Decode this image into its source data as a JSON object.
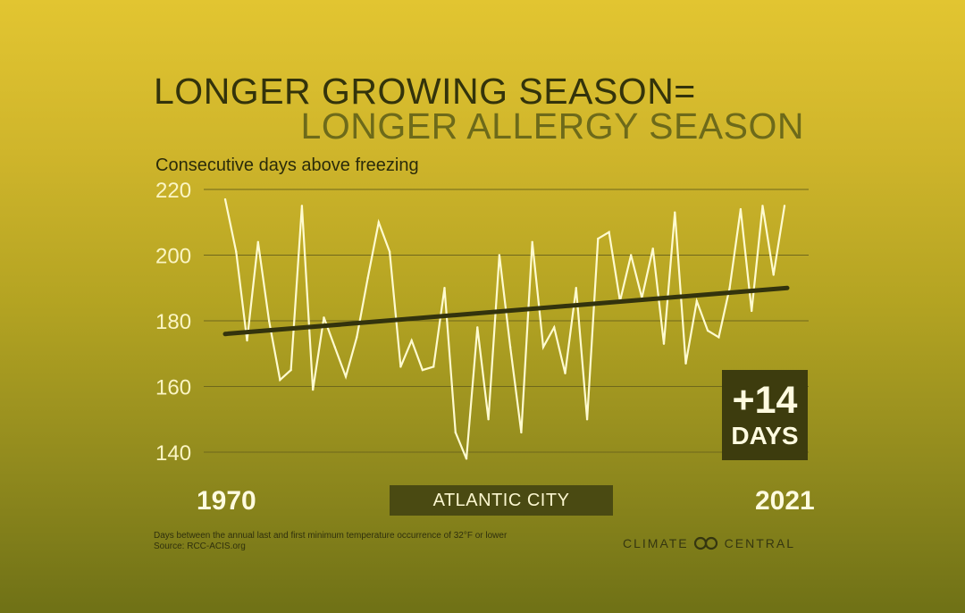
{
  "title_line1": "LONGER GROWING SEASON=",
  "title_line2": "LONGER ALLERGY SEASON",
  "colors": {
    "series_line": "#fffbd0",
    "trend_line": "#33330d",
    "grid": "#6f681c",
    "badge_bg": "#3d3c0e"
  },
  "chart_data": {
    "type": "line",
    "ylabel": "Consecutive days above freezing",
    "ylim": [
      130,
      225
    ],
    "yticks": [
      140,
      160,
      180,
      200,
      220
    ],
    "xlim": [
      1970,
      2021
    ],
    "x_start_label": "1970",
    "x_end_label": "2021",
    "grid": "horizontal",
    "series": [
      {
        "x": [
          1970,
          1971,
          1972,
          1973,
          1974,
          1975,
          1976,
          1977,
          1978,
          1979,
          1980,
          1981,
          1982,
          1983,
          1984,
          1985,
          1986,
          1987,
          1988,
          1989,
          1990,
          1991,
          1992,
          1993,
          1994,
          1995,
          1996,
          1997,
          1998,
          1999,
          2000,
          2001,
          2002,
          2003,
          2004,
          2005,
          2006,
          2007,
          2008,
          2009,
          2010,
          2011,
          2012,
          2013,
          2014,
          2015,
          2016,
          2017,
          2018,
          2019,
          2020,
          2021
        ],
        "values": [
          217,
          201,
          174,
          204,
          180,
          162,
          165,
          215,
          159,
          181,
          172,
          163,
          175,
          193,
          210,
          201,
          166,
          174,
          165,
          166,
          190,
          146,
          138,
          178,
          150,
          200,
          172,
          146,
          204,
          172,
          178,
          164,
          190,
          150,
          205,
          207,
          186,
          200,
          187,
          202,
          173,
          213,
          167,
          186,
          177,
          175,
          190,
          214,
          183,
          215,
          194,
          215
        ]
      },
      {
        "name": "trend",
        "x": [
          1970,
          2021
        ],
        "values": [
          176,
          190
        ]
      }
    ]
  },
  "badge": {
    "value": "+14",
    "unit": "DAYS"
  },
  "location_label": "ATLANTIC CITY",
  "footnote_line1": "Days between the annual last and first minimum temperature occurrence of 32°F or lower",
  "footnote_line2": "Source: RCC-ACIS.org",
  "logo_left": "CLIMATE",
  "logo_right": "CENTRAL"
}
